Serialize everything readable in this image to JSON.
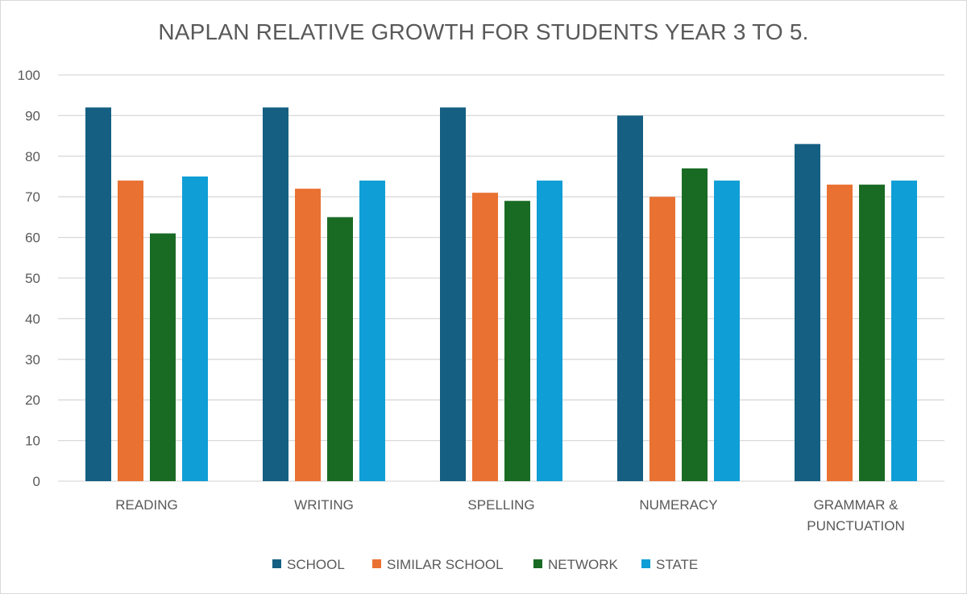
{
  "chart_data": {
    "type": "bar",
    "title": "NAPLAN RELATIVE GROWTH FOR STUDENTS YEAR 3 TO 5.",
    "categories": [
      [
        "READING"
      ],
      [
        "WRITING"
      ],
      [
        "SPELLING"
      ],
      [
        "NUMERACY"
      ],
      [
        "GRAMMAR &",
        "PUNCTUATION"
      ]
    ],
    "series": [
      {
        "name": "SCHOOL",
        "color": "#155F82",
        "values": [
          92,
          92,
          92,
          90,
          83
        ]
      },
      {
        "name": "SIMILAR SCHOOL",
        "color": "#E97132",
        "values": [
          74,
          72,
          71,
          70,
          73
        ]
      },
      {
        "name": "NETWORK",
        "color": "#196B24",
        "values": [
          61,
          65,
          69,
          77,
          73
        ]
      },
      {
        "name": "STATE",
        "color": "#0F9ED5",
        "values": [
          75,
          74,
          74,
          74,
          74
        ]
      }
    ],
    "ylim": [
      0,
      100
    ],
    "yticks": [
      0,
      10,
      20,
      30,
      40,
      50,
      60,
      70,
      80,
      90,
      100
    ],
    "grid": true,
    "legend_position": "bottom"
  }
}
